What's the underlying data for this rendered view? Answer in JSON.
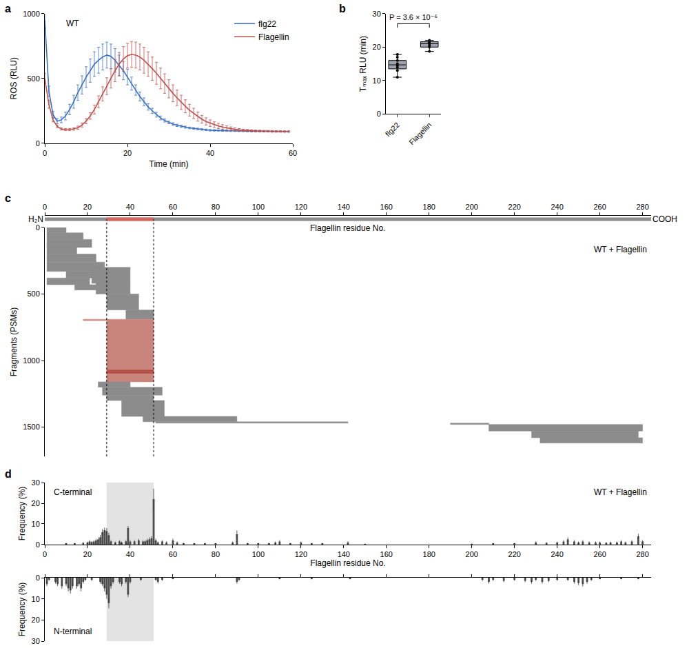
{
  "chart_data": [
    {
      "panel": "a",
      "type": "line",
      "annotations": [
        "WT"
      ],
      "x_label": "Time (min)",
      "y_label": "ROS (RLU)",
      "x": [
        0,
        1,
        2,
        3,
        4,
        5,
        6,
        7,
        8,
        9,
        10,
        11,
        12,
        13,
        14,
        15,
        16,
        17,
        18,
        19,
        20,
        21,
        22,
        23,
        24,
        25,
        26,
        27,
        28,
        29,
        30,
        31,
        32,
        33,
        34,
        35,
        36,
        37,
        38,
        39,
        40,
        41,
        42,
        43,
        44,
        45,
        46,
        47,
        48,
        49,
        50,
        51,
        52,
        53,
        54,
        55,
        56,
        57,
        58,
        59
      ],
      "series": [
        {
          "name": "flg22",
          "color": "#3a70c4",
          "values": [
            950,
            400,
            220,
            170,
            180,
            210,
            260,
            320,
            390,
            450,
            510,
            560,
            610,
            640,
            665,
            680,
            670,
            640,
            600,
            560,
            510,
            460,
            410,
            360,
            320,
            280,
            250,
            220,
            195,
            175,
            160,
            148,
            138,
            130,
            124,
            118,
            114,
            110,
            106,
            103,
            100,
            99,
            98,
            97,
            96,
            95,
            95,
            94,
            94,
            93,
            93,
            92,
            92,
            91,
            91,
            90,
            90,
            90,
            90,
            90
          ],
          "errors": [
            60,
            40,
            25,
            20,
            22,
            30,
            40,
            50,
            60,
            70,
            80,
            90,
            95,
            100,
            100,
            100,
            95,
            90,
            80,
            70,
            60,
            50,
            40,
            35,
            30,
            25,
            20,
            18,
            15,
            12,
            10,
            10,
            9,
            8,
            8,
            7,
            7,
            6,
            6,
            6,
            6,
            6,
            5,
            5,
            5,
            5,
            5,
            5,
            5,
            5,
            5,
            5,
            5,
            5,
            5,
            5,
            5,
            5,
            5,
            5
          ]
        },
        {
          "name": "Flagellin",
          "color": "#c0504d",
          "values": [
            500,
            300,
            180,
            130,
            110,
            105,
            105,
            110,
            120,
            140,
            170,
            210,
            260,
            320,
            380,
            440,
            500,
            560,
            610,
            650,
            675,
            685,
            680,
            665,
            640,
            610,
            575,
            540,
            500,
            460,
            420,
            385,
            350,
            315,
            285,
            255,
            230,
            205,
            185,
            168,
            155,
            143,
            133,
            125,
            118,
            112,
            107,
            103,
            100,
            98,
            96,
            95,
            94,
            93,
            92,
            92,
            91,
            91,
            90,
            90
          ],
          "errors": [
            40,
            30,
            15,
            10,
            8,
            8,
            8,
            10,
            12,
            15,
            20,
            25,
            35,
            45,
            55,
            65,
            75,
            85,
            90,
            95,
            95,
            100,
            100,
            100,
            100,
            95,
            90,
            85,
            80,
            75,
            70,
            65,
            60,
            55,
            50,
            45,
            40,
            35,
            30,
            28,
            25,
            22,
            20,
            18,
            16,
            14,
            12,
            10,
            9,
            8,
            8,
            7,
            7,
            6,
            6,
            6,
            5,
            5,
            5,
            5
          ]
        }
      ],
      "xlim": [
        0,
        60
      ],
      "xticks": [
        0,
        20,
        40,
        60
      ],
      "ylim": [
        0,
        1000
      ],
      "yticks": [
        0,
        500,
        1000
      ],
      "legend": "upper right"
    },
    {
      "panel": "b",
      "type": "box",
      "y_label": "Tₘₐₓ RLU (min)",
      "annotations": [
        "P = 3.6 × 10⁻⁶"
      ],
      "categories": [
        "flg22",
        "Flagellin"
      ],
      "color": "#9ea3ad",
      "q1": [
        13.5,
        20.0
      ],
      "median": [
        14.7,
        21.0
      ],
      "q3": [
        16.0,
        21.6
      ],
      "lower": [
        11.0,
        18.7
      ],
      "upper": [
        17.8,
        22.0
      ],
      "points": [
        [
          11.0,
          13.0,
          14.0,
          14.5,
          15.0,
          16.0,
          17.0,
          17.8
        ],
        [
          18.7,
          20.0,
          20.5,
          21.0,
          21.2,
          21.5,
          22.0
        ]
      ],
      "ylim": [
        0,
        30
      ],
      "yticks": [
        0,
        10,
        20,
        30
      ]
    },
    {
      "panel": "c",
      "type": "segments",
      "x_label": "Flagellin residue No.",
      "y_label": "Fragments (PSMs)",
      "annotations": [
        "WT + Flagellin"
      ],
      "ends": [
        "H₂N",
        "COOH"
      ],
      "region": [
        29,
        51
      ],
      "segments": [
        {
          "y0": 0,
          "y1": 40,
          "x0": 1,
          "x1": 10,
          "color": "#8c8c8c"
        },
        {
          "y0": 40,
          "y1": 90,
          "x0": 1,
          "x1": 18,
          "color": "#8c8c8c"
        },
        {
          "y0": 90,
          "y1": 150,
          "x0": 1,
          "x1": 22,
          "color": "#8c8c8c"
        },
        {
          "y0": 150,
          "y1": 200,
          "x0": 1,
          "x1": 15,
          "color": "#8c8c8c"
        },
        {
          "y0": 200,
          "y1": 260,
          "x0": 1,
          "x1": 24,
          "color": "#8c8c8c"
        },
        {
          "y0": 260,
          "y1": 330,
          "x0": 1,
          "x1": 28,
          "color": "#8c8c8c"
        },
        {
          "y0": 330,
          "y1": 380,
          "x0": 10,
          "x1": 30,
          "color": "#8c8c8c"
        },
        {
          "y0": 380,
          "y1": 430,
          "x0": 1,
          "x1": 21,
          "color": "#8c8c8c"
        },
        {
          "y0": 430,
          "y1": 470,
          "x0": 14,
          "x1": 26,
          "color": "#8c8c8c"
        },
        {
          "y0": 300,
          "y1": 420,
          "x0": 22,
          "x1": 40,
          "color": "#8c8c8c"
        },
        {
          "y0": 420,
          "y1": 500,
          "x0": 24,
          "x1": 40,
          "color": "#8c8c8c"
        },
        {
          "y0": 500,
          "y1": 620,
          "x0": 29,
          "x1": 44,
          "color": "#8c8c8c"
        },
        {
          "y0": 620,
          "y1": 690,
          "x0": 38,
          "x1": 51,
          "color": "#8c8c8c"
        },
        {
          "y0": 690,
          "y1": 700,
          "x0": 18,
          "x1": 51,
          "color": "#c9857c"
        },
        {
          "y0": 700,
          "y1": 1070,
          "x0": 29,
          "x1": 51,
          "color": "#c9857c"
        },
        {
          "y0": 1070,
          "y1": 1100,
          "x0": 29,
          "x1": 51,
          "color": "#b5524a"
        },
        {
          "y0": 1100,
          "y1": 1160,
          "x0": 29,
          "x1": 51,
          "color": "#c9857c"
        },
        {
          "y0": 1160,
          "y1": 1200,
          "x0": 25,
          "x1": 40,
          "color": "#8c8c8c"
        },
        {
          "y0": 1200,
          "y1": 1260,
          "x0": 27,
          "x1": 55,
          "color": "#8c8c8c"
        },
        {
          "y0": 1260,
          "y1": 1300,
          "x0": 29,
          "x1": 51,
          "color": "#8c8c8c"
        },
        {
          "y0": 1300,
          "y1": 1420,
          "x0": 36,
          "x1": 56,
          "color": "#8c8c8c"
        },
        {
          "y0": 1420,
          "y1": 1460,
          "x0": 46,
          "x1": 90,
          "color": "#8c8c8c"
        },
        {
          "y0": 1460,
          "y1": 1470,
          "x0": 52,
          "x1": 142,
          "color": "#8c8c8c"
        },
        {
          "y0": 1470,
          "y1": 1480,
          "x0": 190,
          "x1": 208,
          "color": "#8c8c8c"
        },
        {
          "y0": 1480,
          "y1": 1530,
          "x0": 208,
          "x1": 280,
          "color": "#8c8c8c"
        },
        {
          "y0": 1530,
          "y1": 1580,
          "x0": 228,
          "x1": 278,
          "color": "#8c8c8c"
        },
        {
          "y0": 1580,
          "y1": 1620,
          "x0": 232,
          "x1": 280,
          "color": "#8c8c8c"
        }
      ],
      "xlim": [
        0,
        284
      ],
      "xticks": [
        0,
        20,
        40,
        60,
        80,
        100,
        120,
        140,
        160,
        180,
        200,
        220,
        240,
        260,
        280
      ],
      "ylim": [
        1720,
        0
      ],
      "yticks": [
        0,
        500,
        1000,
        1500
      ]
    },
    {
      "panel": "d",
      "type": "bar",
      "annotations": [
        "C-terminal",
        "WT + Flagellin"
      ],
      "x_label": "Flagellin residue No.",
      "y_label": "Frequency (%)",
      "color": "#4d4d4d",
      "region": [
        29,
        51
      ],
      "x": [
        10,
        14,
        18,
        20,
        21,
        22,
        23,
        24,
        25,
        26,
        27,
        28,
        29,
        30,
        31,
        33,
        35,
        36,
        38,
        39,
        40,
        42,
        44,
        46,
        47,
        48,
        49,
        50,
        51,
        52,
        53,
        55,
        57,
        60,
        62,
        65,
        70,
        75,
        80,
        88,
        90,
        95,
        100,
        105,
        108,
        110,
        115,
        120,
        125,
        130,
        142,
        150,
        200,
        210,
        220,
        230,
        235,
        240,
        243,
        245,
        248,
        250,
        252,
        255,
        258,
        260,
        263,
        265,
        268,
        270,
        272,
        275,
        278,
        280
      ],
      "values": [
        0.5,
        0.5,
        0.8,
        1.0,
        1.5,
        1.2,
        1.5,
        2.0,
        2.5,
        3.5,
        6.0,
        7.0,
        6.5,
        4.5,
        1.5,
        1.0,
        1.5,
        1.0,
        1.5,
        8.0,
        1.5,
        1.5,
        2.0,
        1.5,
        1.5,
        2.0,
        2.5,
        3.0,
        22.0,
        2.0,
        1.0,
        1.5,
        1.0,
        2.0,
        1.0,
        0.5,
        0.5,
        0.5,
        0.5,
        1.0,
        5.0,
        0.5,
        0.5,
        0.5,
        1.0,
        1.5,
        0.5,
        1.0,
        0.5,
        0.5,
        1.0,
        0.3,
        0.3,
        0.5,
        0.5,
        1.0,
        0.8,
        1.0,
        1.5,
        2.5,
        1.5,
        1.0,
        1.5,
        1.0,
        1.0,
        1.0,
        0.8,
        1.0,
        1.0,
        1.5,
        1.0,
        1.5,
        4.0,
        1.5
      ],
      "errors": [
        0.3,
        0.3,
        0.4,
        0.5,
        0.6,
        0.5,
        0.6,
        0.8,
        1.0,
        1.2,
        1.5,
        1.2,
        1.5,
        1.2,
        0.6,
        0.5,
        0.6,
        0.5,
        0.6,
        1.0,
        0.6,
        0.6,
        0.8,
        0.6,
        0.6,
        0.8,
        1.0,
        1.0,
        5.0,
        0.8,
        0.5,
        0.6,
        0.5,
        0.8,
        0.5,
        0.3,
        0.3,
        0.3,
        0.3,
        0.5,
        1.8,
        0.3,
        0.3,
        0.3,
        0.5,
        0.6,
        0.3,
        0.5,
        0.3,
        0.3,
        0.6,
        0.2,
        0.2,
        0.3,
        0.3,
        0.5,
        0.4,
        0.5,
        0.6,
        1.0,
        0.6,
        0.5,
        0.6,
        0.5,
        0.5,
        0.5,
        0.4,
        0.5,
        0.5,
        0.6,
        0.5,
        0.6,
        1.2,
        0.6
      ],
      "xlim": [
        0,
        284
      ],
      "xticks": [
        0,
        20,
        40,
        60,
        80,
        100,
        120,
        140,
        160,
        180,
        200,
        220,
        240,
        260,
        280
      ],
      "ylim": [
        0,
        30
      ],
      "yticks": [
        0,
        10,
        20,
        30
      ]
    },
    {
      "type": "bar",
      "annotations": [
        "N-terminal"
      ],
      "y_label": "Frequency (%)",
      "color": "#4d4d4d",
      "region": [
        29,
        51
      ],
      "tick_labels": "y",
      "x": [
        1,
        2,
        5,
        6,
        8,
        10,
        11,
        12,
        13,
        15,
        16,
        17,
        18,
        19,
        22,
        26,
        27,
        28,
        29,
        30,
        31,
        32,
        35,
        36,
        38,
        39,
        40,
        45,
        52,
        53,
        55,
        60,
        90,
        91,
        110,
        125,
        143,
        205,
        208,
        210,
        215,
        220,
        225,
        228,
        230,
        233,
        236,
        240,
        245,
        248,
        250,
        252,
        254,
        256,
        260,
        270,
        278
      ],
      "values": [
        3,
        1,
        2,
        3,
        4,
        3,
        5,
        6,
        4,
        4,
        3,
        5,
        2,
        1,
        1,
        2,
        3,
        5,
        8,
        12,
        4,
        2,
        2,
        3,
        2,
        8,
        2,
        1,
        1,
        2,
        1,
        0.5,
        2,
        1,
        0.5,
        0.5,
        0.5,
        1,
        2,
        1,
        1.5,
        1,
        1.5,
        2,
        1,
        2,
        1.5,
        1,
        1,
        2,
        2.5,
        3,
        2,
        1,
        0.5,
        0.5,
        0.5
      ],
      "errors": [
        1,
        0.5,
        0.8,
        1,
        1.2,
        1,
        1.5,
        1.5,
        1.2,
        1.2,
        1,
        1.5,
        0.8,
        0.5,
        0.5,
        0.8,
        1,
        1.5,
        2,
        2.5,
        1.2,
        0.8,
        0.8,
        1,
        0.8,
        1.2,
        0.8,
        0.5,
        0.5,
        0.8,
        0.5,
        0.3,
        0.8,
        0.5,
        0.3,
        0.3,
        0.3,
        0.5,
        0.8,
        0.5,
        0.6,
        0.5,
        0.6,
        0.8,
        0.5,
        0.8,
        0.6,
        0.5,
        0.5,
        0.8,
        1,
        1.2,
        0.8,
        0.5,
        0.3,
        0.3,
        0.3
      ],
      "xlim": [
        0,
        284
      ],
      "xticks": [
        0,
        20,
        40,
        60,
        80,
        100,
        120,
        140,
        160,
        180,
        200,
        220,
        240,
        260,
        280
      ],
      "ylim": [
        30,
        0
      ],
      "yticks": [
        0,
        10,
        20,
        30
      ]
    }
  ]
}
